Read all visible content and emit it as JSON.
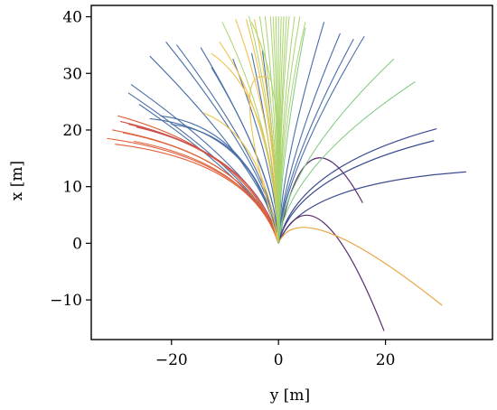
{
  "chart_data": {
    "type": "line",
    "title": "",
    "xlabel": "y [m]",
    "ylabel": "x [m]",
    "xlim": [
      -35,
      40
    ],
    "ylim": [
      -17,
      42
    ],
    "xticks": [
      -20,
      0,
      20
    ],
    "yticks": [
      -10,
      0,
      10,
      20,
      30,
      40
    ],
    "xtick_labels": [
      "−20",
      "0",
      "20"
    ],
    "ytick_labels": [
      "−10",
      "0",
      "10",
      "20",
      "30",
      "40"
    ],
    "grid": false,
    "legend": "none",
    "origin": [
      0,
      0
    ],
    "series": [
      {
        "color": "#3b4a8f",
        "end": [
          29.5,
          20.2
        ],
        "control": [
          3.2,
          13.5
        ],
        "weight": 1.2
      },
      {
        "color": "#3b4a8f",
        "end": [
          29.0,
          18.1
        ],
        "control": [
          3.0,
          12.0
        ],
        "weight": 1.2
      },
      {
        "color": "#3b4a8f",
        "end": [
          35.0,
          12.6
        ],
        "control": [
          4.0,
          10.5
        ],
        "weight": 1.2
      },
      {
        "color": "#5a2d6e",
        "end": [
          15.7,
          7.2
        ],
        "control": [
          5.0,
          26.0
        ],
        "weight": 1.2
      },
      {
        "color": "#5a2d6e",
        "end": [
          19.7,
          -15.4
        ],
        "control": [
          7.0,
          15.0
        ],
        "weight": 1.2
      },
      {
        "color": "#e8a33c",
        "end": [
          30.5,
          -10.9
        ],
        "control": [
          4.0,
          9.0
        ],
        "weight": 1.2
      },
      {
        "color": "#4a6fa8",
        "end": [
          -28.0,
          26.5
        ],
        "control": [
          -2.0,
          10.0
        ],
        "weight": 1.1
      },
      {
        "color": "#4a6fa8",
        "end": [
          -27.5,
          28.0
        ],
        "control": [
          -1.5,
          10.5
        ],
        "weight": 1.1
      },
      {
        "color": "#4a6fa8",
        "end": [
          -26.0,
          24.5
        ],
        "control": [
          -2.0,
          9.0
        ],
        "weight": 1.1
      },
      {
        "color": "#4a6fa8",
        "end": [
          -24.0,
          33.0
        ],
        "control": [
          -1.0,
          11.0
        ],
        "weight": 1.1
      },
      {
        "color": "#4a6fa8",
        "end": [
          -21.0,
          35.5
        ],
        "control": [
          -1.0,
          12.0
        ],
        "weight": 1.1
      },
      {
        "color": "#4a6fa8",
        "end": [
          -19.0,
          35.0
        ],
        "control": [
          -0.8,
          12.0
        ],
        "weight": 1.1
      },
      {
        "color": "#4a6fa8",
        "end": [
          -14.5,
          34.5
        ],
        "control": [
          -0.5,
          12.5
        ],
        "weight": 1.1
      },
      {
        "color": "#4a6fa8",
        "end": [
          -12.5,
          31.0
        ],
        "control": [
          -0.5,
          12.0
        ],
        "weight": 1.1
      },
      {
        "color": "#4a6fa8",
        "end": [
          -8.5,
          32.5
        ],
        "control": [
          -0.3,
          12.5
        ],
        "weight": 1.1
      },
      {
        "color": "#4a6fa8",
        "end": [
          -5.0,
          33.5
        ],
        "control": [
          -0.2,
          12.5
        ],
        "weight": 1.1
      },
      {
        "color": "#4a6fa8",
        "end": [
          -3.0,
          34.0
        ],
        "control": [
          -0.1,
          13.0
        ],
        "weight": 1.1
      },
      {
        "color": "#4a6fa8",
        "end": [
          8.5,
          39.0
        ],
        "control": [
          0.3,
          13.0
        ],
        "weight": 1.1
      },
      {
        "color": "#4a6fa8",
        "end": [
          11.5,
          37.0
        ],
        "control": [
          0.5,
          12.5
        ],
        "weight": 1.1
      },
      {
        "color": "#4a6fa8",
        "end": [
          14.0,
          36.0
        ],
        "control": [
          0.6,
          12.5
        ],
        "weight": 1.1
      },
      {
        "color": "#4a6fa8",
        "end": [
          16.0,
          36.5
        ],
        "control": [
          0.8,
          12.5
        ],
        "weight": 1.1
      },
      {
        "color": "#4a6fa8",
        "end": [
          -24.0,
          22.0
        ],
        "control": [
          -4.0,
          20.0
        ],
        "weight": 1.1
      },
      {
        "color": "#4a6fa8",
        "end": [
          -22.0,
          22.5
        ],
        "control": [
          -5.0,
          20.5
        ],
        "weight": 1.1
      },
      {
        "color": "#4a6fa8",
        "end": [
          -20.0,
          21.0
        ],
        "control": [
          -4.0,
          19.0
        ],
        "weight": 1.1
      },
      {
        "color": "#e0613a",
        "end": [
          -30.0,
          22.5
        ],
        "control": [
          -5.0,
          16.0
        ],
        "weight": 1.1
      },
      {
        "color": "#e0613a",
        "end": [
          -32.0,
          18.5
        ],
        "control": [
          -5.0,
          15.0
        ],
        "weight": 1.1
      },
      {
        "color": "#e0613a",
        "end": [
          -31.0,
          20.0
        ],
        "control": [
          -5.0,
          15.5
        ],
        "weight": 1.1
      },
      {
        "color": "#e0613a",
        "end": [
          -29.0,
          19.5
        ],
        "control": [
          -5.0,
          15.0
        ],
        "weight": 1.1
      },
      {
        "color": "#e0613a",
        "end": [
          -28.0,
          21.0
        ],
        "control": [
          -5.0,
          16.0
        ],
        "weight": 1.1
      },
      {
        "color": "#e0613a",
        "end": [
          -30.5,
          17.5
        ],
        "control": [
          -5.0,
          14.5
        ],
        "weight": 1.1
      },
      {
        "color": "#e0613a",
        "end": [
          -27.0,
          18.0
        ],
        "control": [
          -5.0,
          14.0
        ],
        "weight": 1.1
      },
      {
        "color": "#c94e4e",
        "end": [
          -29.5,
          21.5
        ],
        "control": [
          -4.0,
          16.0
        ],
        "weight": 1.1
      },
      {
        "color": "#c94e4e",
        "end": [
          -26.5,
          20.5
        ],
        "control": [
          -4.0,
          15.5
        ],
        "weight": 1.1
      },
      {
        "color": "#f0c34e",
        "end": [
          -12.5,
          33.5
        ],
        "control": [
          -1.0,
          26.0
        ],
        "weight": 1.1
      },
      {
        "color": "#f0c34e",
        "end": [
          -8.0,
          39.5
        ],
        "control": [
          -0.5,
          20.0
        ],
        "weight": 1.1
      },
      {
        "color": "#f0c34e",
        "end": [
          -6.0,
          39.5
        ],
        "control": [
          -0.4,
          20.0
        ],
        "weight": 1.1
      },
      {
        "color": "#f0c34e",
        "end": [
          -4.5,
          39.5
        ],
        "control": [
          -0.3,
          20.0
        ],
        "weight": 1.1
      },
      {
        "color": "#f0c34e",
        "end": [
          -11.0,
          35.5
        ],
        "control": [
          -1.0,
          22.0
        ],
        "weight": 1.1
      },
      {
        "color": "#f0c34e",
        "end": [
          -1.5,
          29.0
        ],
        "control": [
          -10.0,
          33.0
        ],
        "weight": 1.1
      },
      {
        "color": "#f0c34e",
        "end": [
          -14.0,
          23.0
        ],
        "control": [
          -3.0,
          19.0
        ],
        "weight": 1.1
      },
      {
        "color": "#a9d36e",
        "end": [
          -10.5,
          39.0
        ],
        "control": [
          -0.6,
          20.0
        ],
        "weight": 1.0
      },
      {
        "color": "#a9d36e",
        "end": [
          -5.5,
          40.0
        ],
        "control": [
          -0.3,
          20.0
        ],
        "weight": 1.0
      },
      {
        "color": "#a9d36e",
        "end": [
          -3.5,
          40.0
        ],
        "control": [
          -0.2,
          20.0
        ],
        "weight": 1.0
      },
      {
        "color": "#a9d36e",
        "end": [
          -2.5,
          40.0
        ],
        "control": [
          -0.1,
          20.0
        ],
        "weight": 1.0
      },
      {
        "color": "#a9d36e",
        "end": [
          -1.5,
          40.0
        ],
        "control": [
          -0.1,
          20.0
        ],
        "weight": 1.0
      },
      {
        "color": "#a9d36e",
        "end": [
          -1.0,
          40.0
        ],
        "control": [
          0.0,
          20.0
        ],
        "weight": 1.0
      },
      {
        "color": "#a9d36e",
        "end": [
          -0.5,
          40.0
        ],
        "control": [
          0.0,
          20.0
        ],
        "weight": 1.0
      },
      {
        "color": "#a9d36e",
        "end": [
          0.0,
          40.0
        ],
        "control": [
          0.0,
          20.0
        ],
        "weight": 1.0
      },
      {
        "color": "#a9d36e",
        "end": [
          0.5,
          40.0
        ],
        "control": [
          0.0,
          20.0
        ],
        "weight": 1.0
      },
      {
        "color": "#a9d36e",
        "end": [
          1.0,
          40.0
        ],
        "control": [
          0.0,
          20.0
        ],
        "weight": 1.0
      },
      {
        "color": "#a9d36e",
        "end": [
          1.5,
          40.0
        ],
        "control": [
          0.1,
          20.0
        ],
        "weight": 1.0
      },
      {
        "color": "#a9d36e",
        "end": [
          2.0,
          40.0
        ],
        "control": [
          0.1,
          20.0
        ],
        "weight": 1.0
      },
      {
        "color": "#a9d36e",
        "end": [
          3.0,
          40.0
        ],
        "control": [
          0.2,
          20.0
        ],
        "weight": 1.0
      },
      {
        "color": "#a9d36e",
        "end": [
          4.0,
          40.0
        ],
        "control": [
          0.2,
          20.0
        ],
        "weight": 1.0
      },
      {
        "color": "#a9d36e",
        "end": [
          5.0,
          39.0
        ],
        "control": [
          0.3,
          20.0
        ],
        "weight": 1.0
      },
      {
        "color": "#a9d36e",
        "end": [
          -5.0,
          39.0
        ],
        "control": [
          2.0,
          25.0
        ],
        "weight": 1.0
      },
      {
        "color": "#7fc97f",
        "end": [
          21.5,
          32.5
        ],
        "control": [
          1.0,
          14.0
        ],
        "weight": 1.0
      },
      {
        "color": "#7fc97f",
        "end": [
          25.5,
          28.5
        ],
        "control": [
          1.5,
          13.5
        ],
        "weight": 1.0
      },
      {
        "color": "#7fc97f",
        "end": [
          5.0,
          38.0
        ],
        "control": [
          0.2,
          14.0
        ],
        "weight": 1.0
      }
    ]
  }
}
